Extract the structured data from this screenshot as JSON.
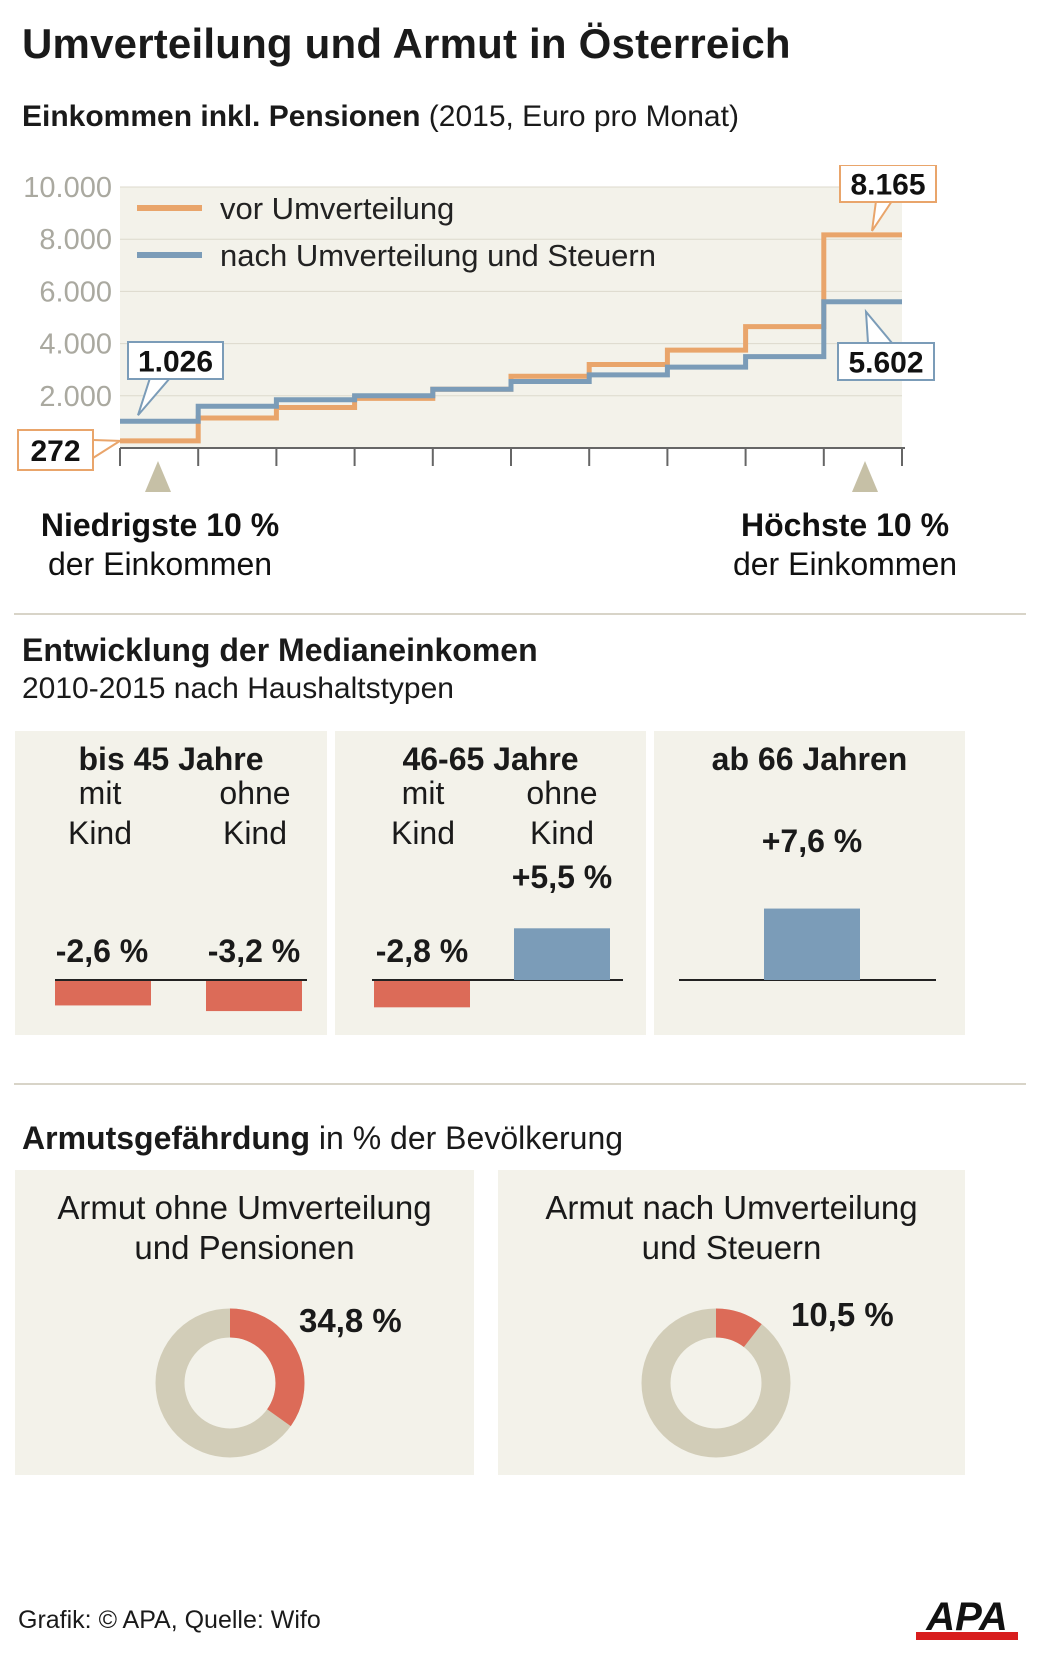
{
  "header": {
    "title": "Umverteilung und Armut in Österreich",
    "subtitle_bold": "Einkommen inkl. Pensionen",
    "subtitle_rest": " (2015, Euro pro Monat)"
  },
  "chart_data": [
    {
      "type": "line",
      "step": true,
      "title": "Einkommen inkl. Pensionen",
      "subtitle": "(2015, Euro pro Monat)",
      "x": [
        1,
        2,
        3,
        4,
        5,
        6,
        7,
        8,
        9,
        10
      ],
      "ylim": [
        0,
        10000
      ],
      "yticks": [
        "10.000",
        "8.000",
        "6.000",
        "4.000",
        "2.000"
      ],
      "grid": true,
      "legend": "top-left",
      "series": [
        {
          "name": "vor Umverteilung",
          "color": "#e9a56b",
          "values": [
            272,
            1150,
            1550,
            1900,
            2250,
            2750,
            3200,
            3750,
            4650,
            8165
          ]
        },
        {
          "name": "nach Umverteilung und Steuern",
          "color": "#7b9cb8",
          "values": [
            1026,
            1600,
            1850,
            2000,
            2250,
            2550,
            2800,
            3100,
            3500,
            5602
          ]
        }
      ],
      "annotations": [
        "1.026",
        "272",
        "8.165",
        "5.602"
      ],
      "x_left_label_bold": "Niedrigste 10 %",
      "x_left_label": "der Einkommen",
      "x_right_label_bold": "Höchste 10 %",
      "x_right_label": "der Einkommen"
    },
    {
      "type": "bar",
      "title": "Entwicklung der Medianeinkomen",
      "subtitle": "2010-2015 nach Haushaltstypen",
      "groups": [
        {
          "name": "bis 45 Jahre",
          "categories": [
            "mit Kind",
            "ohne Kind"
          ],
          "values": [
            -2.6,
            -3.2
          ],
          "labels": [
            "-2,6 %",
            "-3,2 %"
          ]
        },
        {
          "name": "46-65 Jahre",
          "categories": [
            "mit Kind",
            "ohne Kind"
          ],
          "values": [
            -2.8,
            5.5
          ],
          "labels": [
            "-2,8 %",
            "+5,5 %"
          ]
        },
        {
          "name": "ab 66 Jahren",
          "categories": [
            ""
          ],
          "values": [
            7.6
          ],
          "labels": [
            "+7,6 %"
          ]
        }
      ],
      "colors": {
        "negative": "#dc6b58",
        "positive": "#7b9cb8"
      }
    },
    {
      "type": "pie",
      "title": "Armutsgefährdung",
      "subtitle": "in % der Bevölkerung",
      "donuts": [
        {
          "name": "Armut ohne Umverteilung und Pensionen",
          "value": 34.8,
          "label": "34,8 %"
        },
        {
          "name": "Armut nach Umverteilung und Steuern",
          "value": 10.5,
          "label": "10,5 %"
        }
      ],
      "colors": {
        "highlight": "#dc6b58",
        "rest": "#d2cdb8"
      }
    }
  ],
  "labels": {
    "col_mit": "mit",
    "col_ohne": "ohne",
    "col_kind": "Kind"
  },
  "section3": {
    "title_bold": "Armutsgefährdung",
    "title_rest": " in % der Bevölkerung",
    "donut1_line1": "Armut ohne Umverteilung",
    "donut1_line2": "und Pensionen",
    "donut2_line1": "Armut nach Umverteilung",
    "donut2_line2": "und Steuern"
  },
  "footer": {
    "credit": "Grafik: © APA, Quelle: Wifo",
    "logo": "APA"
  },
  "colors": {
    "orange": "#e9a56b",
    "blue": "#7b9cb8",
    "red": "#dc6b58",
    "beige": "#d2cdb8",
    "panel": "#f3f2ea"
  }
}
